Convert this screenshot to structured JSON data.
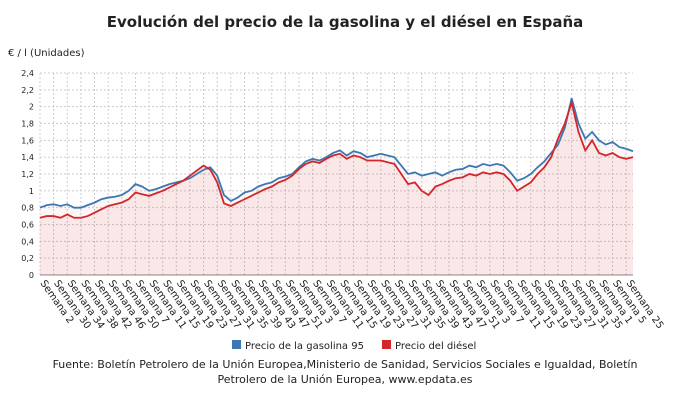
{
  "chart_data": {
    "type": "line",
    "title": "Evolución del precio de la gasolina y el diésel en España",
    "y_label": "€ / l (Unidades)",
    "source": "Fuente: Boletín Petrolero de la Unión Europea,Ministerio de Sanidad, Servicios Sociales e Igualdad, Boletín Petrolero de la Unión Europea, www.epdata.es",
    "categories": [
      "Semana 2",
      null,
      "Semana 30",
      null,
      "Semana 34",
      null,
      "Semana 38",
      null,
      "Semana 42",
      null,
      "Semana 46",
      null,
      "Semana 50",
      null,
      "Semana 7",
      null,
      "Semana 11",
      null,
      "Semana 15",
      null,
      "Semana 19",
      null,
      "Semana 23",
      null,
      "Semana 27",
      null,
      "Semana 31",
      null,
      "Semana 35",
      null,
      "Semana 39",
      null,
      "Semana 43",
      null,
      "Semana 47",
      null,
      "Semana 51",
      null,
      "Semana 3",
      null,
      "Semana 7",
      null,
      "Semana 11",
      null,
      "Semana 15",
      null,
      "Semana 19",
      null,
      "Semana 23",
      null,
      "Semana 27",
      null,
      "Semana 31",
      null,
      "Semana 35",
      null,
      "Semana 39",
      null,
      "Semana 43",
      null,
      "Semana 47",
      null,
      "Semana 51",
      null,
      "Semana 3",
      null,
      "Semana 7",
      null,
      "Semana 11",
      null,
      "Semana 15",
      null,
      "Semana 19",
      null,
      "Semana 23",
      null,
      "Semana 27",
      null,
      "Semana 31",
      null,
      "Semana 35",
      null,
      "Semana 1",
      null,
      "Semana 5",
      null,
      "Semana 25",
      null
    ],
    "series": [
      {
        "name": "Precio de la gasolina 95",
        "color": "#3a78b4",
        "values": [
          0.8,
          0.83,
          0.84,
          0.82,
          0.84,
          0.8,
          0.8,
          0.83,
          0.86,
          0.9,
          0.92,
          0.93,
          0.95,
          1.0,
          1.08,
          1.05,
          1.0,
          1.02,
          1.05,
          1.08,
          1.1,
          1.12,
          1.15,
          1.2,
          1.25,
          1.28,
          1.18,
          0.95,
          0.88,
          0.92,
          0.98,
          1.0,
          1.05,
          1.08,
          1.1,
          1.15,
          1.17,
          1.2,
          1.28,
          1.35,
          1.38,
          1.36,
          1.4,
          1.45,
          1.48,
          1.42,
          1.47,
          1.45,
          1.4,
          1.42,
          1.44,
          1.42,
          1.4,
          1.3,
          1.2,
          1.22,
          1.18,
          1.2,
          1.22,
          1.18,
          1.22,
          1.25,
          1.26,
          1.3,
          1.28,
          1.32,
          1.3,
          1.32,
          1.3,
          1.22,
          1.12,
          1.15,
          1.2,
          1.28,
          1.35,
          1.45,
          1.55,
          1.75,
          2.1,
          1.8,
          1.62,
          1.7,
          1.6,
          1.55,
          1.58,
          1.52,
          1.5,
          1.47
        ]
      },
      {
        "name": "Precio del diésel",
        "color": "#d3262b",
        "values": [
          0.68,
          0.7,
          0.7,
          0.68,
          0.72,
          0.68,
          0.68,
          0.7,
          0.74,
          0.78,
          0.82,
          0.84,
          0.86,
          0.9,
          0.98,
          0.96,
          0.94,
          0.97,
          1.0,
          1.04,
          1.08,
          1.12,
          1.18,
          1.24,
          1.3,
          1.25,
          1.1,
          0.85,
          0.82,
          0.86,
          0.9,
          0.94,
          0.98,
          1.02,
          1.05,
          1.1,
          1.13,
          1.18,
          1.26,
          1.32,
          1.35,
          1.33,
          1.38,
          1.42,
          1.44,
          1.38,
          1.42,
          1.4,
          1.36,
          1.36,
          1.36,
          1.34,
          1.32,
          1.2,
          1.08,
          1.1,
          1.0,
          0.95,
          1.05,
          1.08,
          1.12,
          1.15,
          1.16,
          1.2,
          1.18,
          1.22,
          1.2,
          1.22,
          1.2,
          1.12,
          1.0,
          1.05,
          1.1,
          1.2,
          1.28,
          1.4,
          1.62,
          1.8,
          2.05,
          1.7,
          1.48,
          1.6,
          1.45,
          1.42,
          1.45,
          1.4,
          1.38,
          1.4
        ]
      }
    ],
    "ylim": [
      0,
      2.4
    ],
    "yticks": [
      0,
      {
        "value": 0.2,
        "label": "0,2"
      },
      {
        "value": 0.4,
        "label": "0,4"
      },
      {
        "value": 0.6,
        "label": "0,6"
      },
      {
        "value": 0.8,
        "label": "0,8"
      },
      1,
      {
        "value": 1.2,
        "label": "1,2"
      },
      {
        "value": 1.4,
        "label": "1,4"
      },
      {
        "value": 1.6,
        "label": "1,6"
      },
      {
        "value": 1.8,
        "label": "1,8"
      },
      2,
      {
        "value": 2.2,
        "label": "2,2"
      },
      {
        "value": 2.4,
        "label": "2,4"
      }
    ],
    "grid": true,
    "legend": "bottom"
  }
}
